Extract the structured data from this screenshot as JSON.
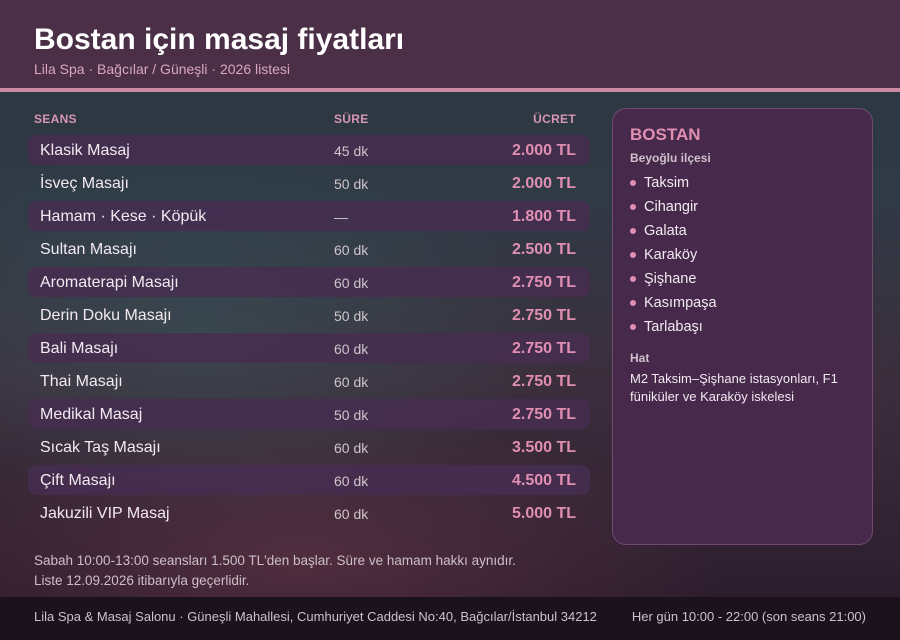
{
  "header": {
    "title": "Bostan için masaj fiyatları",
    "subtitle": "Lila Spa · Bağcılar / Güneşli · 2026 listesi"
  },
  "table": {
    "columns": {
      "name": "SEANS",
      "duration": "SÜRE",
      "price": "ÜCRET"
    },
    "rows": [
      {
        "name": "Klasik Masaj",
        "duration": "45 dk",
        "price": "2.000 TL"
      },
      {
        "name": "İsveç Masajı",
        "duration": "50 dk",
        "price": "2.000 TL"
      },
      {
        "name": "Hamam · Kese · Köpük",
        "duration": "—",
        "price": "1.800 TL"
      },
      {
        "name": "Sultan Masajı",
        "duration": "60 dk",
        "price": "2.500 TL"
      },
      {
        "name": "Aromaterapi Masajı",
        "duration": "60 dk",
        "price": "2.750 TL"
      },
      {
        "name": "Derin Doku Masajı",
        "duration": "50 dk",
        "price": "2.750 TL"
      },
      {
        "name": "Bali Masajı",
        "duration": "60 dk",
        "price": "2.750 TL"
      },
      {
        "name": "Thai Masajı",
        "duration": "60 dk",
        "price": "2.750 TL"
      },
      {
        "name": "Medikal Masaj",
        "duration": "50 dk",
        "price": "2.750 TL"
      },
      {
        "name": "Sıcak Taş Masajı",
        "duration": "60 dk",
        "price": "3.500 TL"
      },
      {
        "name": "Çift Masajı",
        "duration": "60 dk",
        "price": "4.500 TL"
      },
      {
        "name": "Jakuzili VIP Masaj",
        "duration": "60 dk",
        "price": "5.000 TL"
      }
    ]
  },
  "footnote": {
    "line1": "Sabah 10:00-13:00 seansları 1.500 TL'den başlar. Süre ve hamam hakkı aynıdır.",
    "line2": "Liste 12.09.2026 itibarıyla geçerlidir."
  },
  "sidebar": {
    "district": "BOSTAN",
    "district_sub": "Beyoğlu ilçesi",
    "neighborhoods": [
      "Taksim",
      "Cihangir",
      "Galata",
      "Karaköy",
      "Şişhane",
      "Kasımpaşa",
      "Tarlabaşı"
    ],
    "transit_label": "Hat",
    "transit_text": "M2 Taksim–Şişhane istasyonları, F1 füniküler ve Karaköy iskelesi"
  },
  "footer": {
    "address": "Lila Spa & Masaj Salonu · Güneşli Mahallesi, Cumhuriyet Caddesi No:40, Bağcılar/İstanbul 34212",
    "hours": "Her gün 10:00 - 22:00 (son seans 21:00)"
  },
  "colors": {
    "accent": "#e08fb2",
    "header_bg": "#4b2f46",
    "card_bg": "#46294b"
  }
}
